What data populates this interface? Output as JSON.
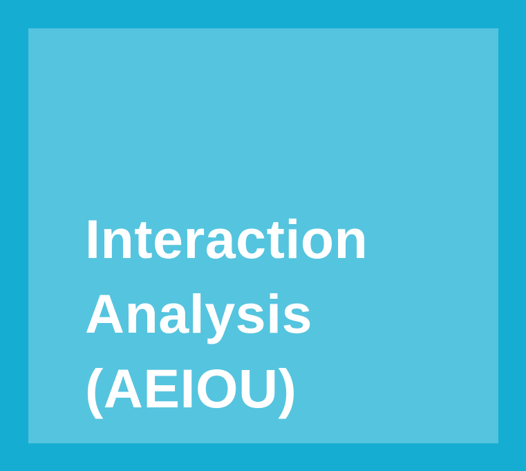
{
  "card": {
    "title_lines": [
      "Interaction",
      "Analysis",
      "(AEIOU)"
    ]
  },
  "colors": {
    "border": "#15aed2",
    "panel": "#55c4df",
    "text": "#ffffff"
  }
}
